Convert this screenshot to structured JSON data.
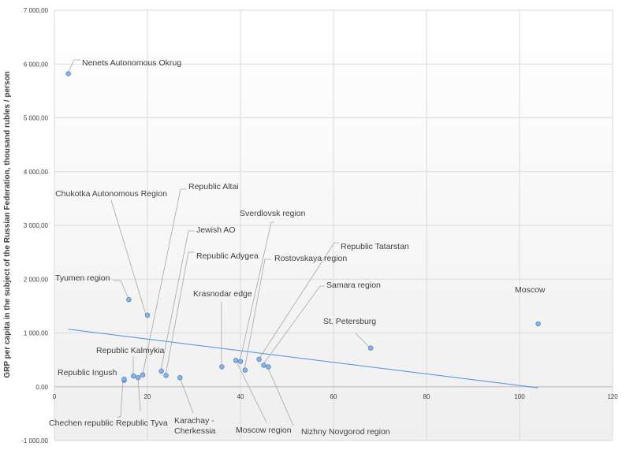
{
  "chart_data": {
    "type": "scatter",
    "title": "",
    "xlabel": "",
    "ylabel": "GRP per capita in the subject of the Russian Federation, thousand rubles / person",
    "xlim": [
      0,
      120
    ],
    "ylim": [
      -1000,
      7000
    ],
    "x_ticks": [
      "0",
      "20",
      "40",
      "60",
      "80",
      "100",
      "120"
    ],
    "y_ticks": [
      "-1 000,00",
      "0,00",
      "1 000,00",
      "2 000,00",
      "3 000,00",
      "4 000,00",
      "5 000,00",
      "6 000,00",
      "7 000,00"
    ],
    "x_tick_values": [
      0,
      20,
      40,
      60,
      80,
      100,
      120
    ],
    "y_tick_values": [
      -1000,
      0,
      1000,
      2000,
      3000,
      4000,
      5000,
      6000,
      7000
    ],
    "grid": true,
    "legend": false,
    "point_color": "#8fb4e0",
    "point_stroke": "#4a7fc0",
    "trendline_color": "#4a90d9",
    "trendline": {
      "x": [
        3,
        104
      ],
      "y": [
        1070,
        -20
      ]
    },
    "points": [
      {
        "label": "Nenets Autonomous Okrug",
        "x": 3,
        "y": 5820
      },
      {
        "label": "Chukotka Autonomous Region",
        "x": 20,
        "y": 1330
      },
      {
        "label": "Tyumen region",
        "x": 16,
        "y": 1620
      },
      {
        "label": "Republic Altai",
        "x": 19,
        "y": 220
      },
      {
        "label": "Jewish AO",
        "x": 23,
        "y": 290
      },
      {
        "label": "Republic  Adygea",
        "x": 24,
        "y": 210
      },
      {
        "label": "Republic Kalmykia",
        "x": 17,
        "y": 200
      },
      {
        "label": "Republic  Ingush",
        "x": 15,
        "y": 120
      },
      {
        "label": "Chechen republic",
        "x": 15,
        "y": 140
      },
      {
        "label": "Republic Tyva",
        "x": 18,
        "y": 170
      },
      {
        "label": "Karachay - Cherkessia",
        "x": 27,
        "y": 170
      },
      {
        "label": "Krasnodar edge",
        "x": 36,
        "y": 370
      },
      {
        "label": "Sverdlovsk region",
        "x": 40,
        "y": 470
      },
      {
        "label": "Moscow  region",
        "x": 39,
        "y": 490
      },
      {
        "label": "Rostovskaya  region",
        "x": 41,
        "y": 310
      },
      {
        "label": "Republic Tatarstan",
        "x": 44,
        "y": 510
      },
      {
        "label": "Samara  region",
        "x": 45,
        "y": 400
      },
      {
        "label": "Nizhny Novgorod region",
        "x": 46,
        "y": 370
      },
      {
        "label": "St. Petersburg",
        "x": 68,
        "y": 720
      },
      {
        "label": "Moscow",
        "x": 104,
        "y": 1170
      }
    ]
  }
}
